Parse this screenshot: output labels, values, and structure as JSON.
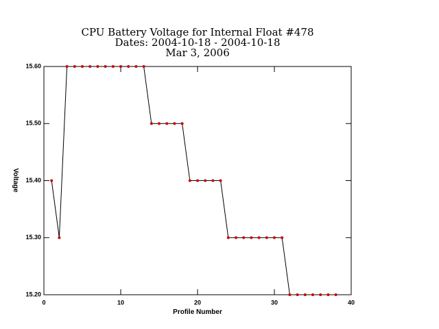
{
  "chart_data": {
    "type": "line",
    "title": [
      "CPU Battery Voltage for Internal Float #478",
      "Dates:  2004-10-18 -  2004-10-18",
      "Mar  3, 2006"
    ],
    "x_label": "Profile Number",
    "y_label": "Voltage",
    "x": [
      1,
      2,
      3,
      4,
      5,
      6,
      7,
      8,
      9,
      10,
      11,
      12,
      13,
      14,
      15,
      16,
      17,
      18,
      19,
      20,
      21,
      22,
      23,
      24,
      25,
      26,
      27,
      28,
      29,
      30,
      31,
      32,
      33,
      34,
      35,
      36,
      37,
      38
    ],
    "series": [
      {
        "color": "#000000",
        "marker_color": "#cc0000",
        "values": [
          15.4,
          15.3,
          15.6,
          15.6,
          15.6,
          15.6,
          15.6,
          15.6,
          15.6,
          15.6,
          15.6,
          15.6,
          15.6,
          15.5,
          15.5,
          15.5,
          15.5,
          15.5,
          15.4,
          15.4,
          15.4,
          15.4,
          15.4,
          15.3,
          15.3,
          15.3,
          15.3,
          15.3,
          15.3,
          15.3,
          15.3,
          15.2,
          15.2,
          15.2,
          15.2,
          15.2,
          15.2,
          15.2
        ]
      }
    ],
    "xlim": [
      0,
      40
    ],
    "xticks": [
      0,
      10,
      20,
      30,
      40
    ],
    "ylim": [
      15.2,
      15.6
    ],
    "yticks": [
      {
        "value": 15.2,
        "label": "15.20"
      },
      {
        "value": 15.3,
        "label": "15.30"
      },
      {
        "value": 15.4,
        "label": "15.40"
      },
      {
        "value": 15.5,
        "label": "15.50"
      },
      {
        "value": 15.6,
        "label": "15.60"
      }
    ]
  }
}
